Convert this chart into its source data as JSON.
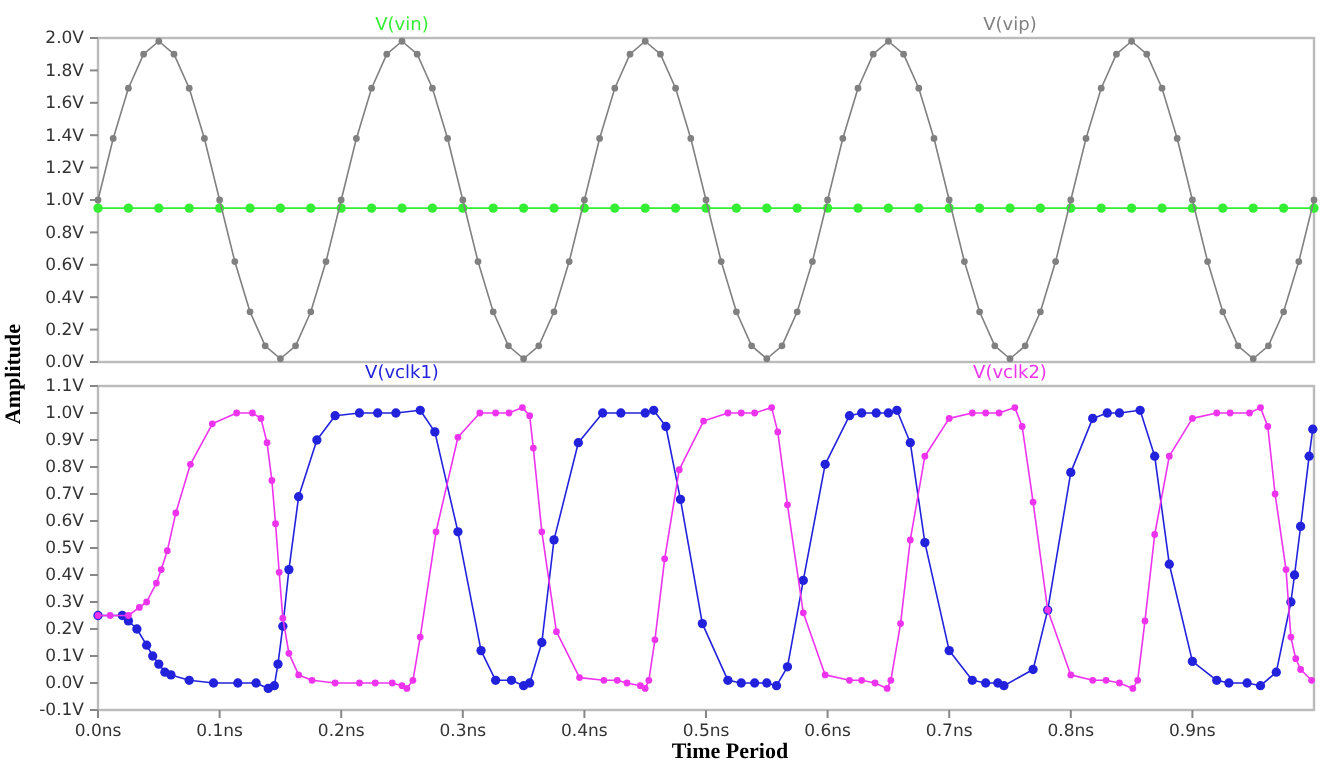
{
  "chart_data": [
    {
      "type": "line",
      "ylabel": "Amplitude",
      "xlim": [
        0,
        1.0
      ],
      "ylim": [
        0,
        2.0
      ],
      "yticks": [
        {
          "value": 0,
          "label": "0.0V"
        },
        {
          "value": 0.2,
          "label": "0.2V"
        },
        {
          "value": 0.4,
          "label": "0.4V"
        },
        {
          "value": 0.6,
          "label": "0.6V"
        },
        {
          "value": 0.8,
          "label": "0.8V"
        },
        {
          "value": 1.0,
          "label": "1.0V"
        },
        {
          "value": 1.2,
          "label": "1.2V"
        },
        {
          "value": 1.4,
          "label": "1.4V"
        },
        {
          "value": 1.6,
          "label": "1.6V"
        },
        {
          "value": 1.8,
          "label": "1.8V"
        },
        {
          "value": 2.0,
          "label": "2.0V"
        }
      ],
      "tick_labels": "y",
      "grid": false,
      "legend": "top",
      "marker": "circle",
      "line_style": "solid",
      "series": [
        {
          "name": "V(vin)",
          "color": "#33ee33",
          "x": [
            0,
            0.025,
            0.05,
            0.075,
            0.1,
            0.125,
            0.15,
            0.175,
            0.2,
            0.225,
            0.25,
            0.275,
            0.3,
            0.325,
            0.35,
            0.375,
            0.4,
            0.425,
            0.45,
            0.475,
            0.5,
            0.525,
            0.55,
            0.575,
            0.6,
            0.625,
            0.65,
            0.675,
            0.7,
            0.725,
            0.75,
            0.775,
            0.8,
            0.825,
            0.85,
            0.875,
            0.9,
            0.925,
            0.95,
            0.975,
            1.0
          ],
          "values": [
            0.95,
            0.95,
            0.95,
            0.95,
            0.95,
            0.95,
            0.95,
            0.95,
            0.95,
            0.95,
            0.95,
            0.95,
            0.95,
            0.95,
            0.95,
            0.95,
            0.95,
            0.95,
            0.95,
            0.95,
            0.95,
            0.95,
            0.95,
            0.95,
            0.95,
            0.95,
            0.95,
            0.95,
            0.95,
            0.95,
            0.95,
            0.95,
            0.95,
            0.95,
            0.95,
            0.95,
            0.95,
            0.95,
            0.95,
            0.95,
            0.95
          ]
        },
        {
          "name": "V(vip)",
          "color": "#808080",
          "x": [
            0,
            0.0125,
            0.025,
            0.0375,
            0.05,
            0.0625,
            0.075,
            0.0875,
            0.1,
            0.1125,
            0.125,
            0.1375,
            0.15,
            0.1625,
            0.175,
            0.1875,
            0.2,
            0.2125,
            0.225,
            0.2375,
            0.25,
            0.2625,
            0.275,
            0.2875,
            0.3,
            0.3125,
            0.325,
            0.3375,
            0.35,
            0.3625,
            0.375,
            0.3875,
            0.4,
            0.4125,
            0.425,
            0.4375,
            0.45,
            0.4625,
            0.475,
            0.4875,
            0.5,
            0.5125,
            0.525,
            0.5375,
            0.55,
            0.5625,
            0.575,
            0.5875,
            0.6,
            0.6125,
            0.625,
            0.6375,
            0.65,
            0.6625,
            0.675,
            0.6875,
            0.7,
            0.7125,
            0.725,
            0.7375,
            0.75,
            0.7625,
            0.775,
            0.7875,
            0.8,
            0.8125,
            0.825,
            0.8375,
            0.85,
            0.8625,
            0.875,
            0.8875,
            0.9,
            0.9125,
            0.925,
            0.9375,
            0.95,
            0.9625,
            0.975,
            0.9875,
            1.0
          ],
          "values": [
            1.0,
            1.38,
            1.69,
            1.9,
            1.98,
            1.9,
            1.69,
            1.38,
            1.0,
            0.62,
            0.31,
            0.1,
            0.02,
            0.1,
            0.31,
            0.62,
            1.0,
            1.38,
            1.69,
            1.9,
            1.98,
            1.9,
            1.69,
            1.38,
            1.0,
            0.62,
            0.31,
            0.1,
            0.02,
            0.1,
            0.31,
            0.62,
            1.0,
            1.38,
            1.69,
            1.9,
            1.98,
            1.9,
            1.69,
            1.38,
            1.0,
            0.62,
            0.31,
            0.1,
            0.02,
            0.1,
            0.31,
            0.62,
            1.0,
            1.38,
            1.69,
            1.9,
            1.98,
            1.9,
            1.69,
            1.38,
            1.0,
            0.62,
            0.31,
            0.1,
            0.02,
            0.1,
            0.31,
            0.62,
            1.0,
            1.38,
            1.69,
            1.9,
            1.98,
            1.9,
            1.69,
            1.38,
            1.0,
            0.62,
            0.31,
            0.1,
            0.02,
            0.1,
            0.31,
            0.62,
            1.0
          ]
        }
      ]
    },
    {
      "type": "line",
      "xlabel": "Time Period",
      "xlim": [
        0,
        1.0
      ],
      "xticks": [
        {
          "value": 0,
          "label": "0.0ns"
        },
        {
          "value": 0.1,
          "label": "0.1ns"
        },
        {
          "value": 0.2,
          "label": "0.2ns"
        },
        {
          "value": 0.3,
          "label": "0.3ns"
        },
        {
          "value": 0.4,
          "label": "0.4ns"
        },
        {
          "value": 0.5,
          "label": "0.5ns"
        },
        {
          "value": 0.6,
          "label": "0.6ns"
        },
        {
          "value": 0.7,
          "label": "0.7ns"
        },
        {
          "value": 0.8,
          "label": "0.8ns"
        },
        {
          "value": 0.9,
          "label": "0.9ns"
        }
      ],
      "ylim": [
        -0.1,
        1.1
      ],
      "yticks": [
        {
          "value": -0.1,
          "label": "-0.1V"
        },
        {
          "value": 0,
          "label": "0.0V"
        },
        {
          "value": 0.1,
          "label": "0.1V"
        },
        {
          "value": 0.2,
          "label": "0.2V"
        },
        {
          "value": 0.3,
          "label": "0.3V"
        },
        {
          "value": 0.4,
          "label": "0.4V"
        },
        {
          "value": 0.5,
          "label": "0.5V"
        },
        {
          "value": 0.6,
          "label": "0.6V"
        },
        {
          "value": 0.7,
          "label": "0.7V"
        },
        {
          "value": 0.8,
          "label": "0.8V"
        },
        {
          "value": 0.9,
          "label": "0.9V"
        },
        {
          "value": 1.0,
          "label": "1.0V"
        },
        {
          "value": 1.1,
          "label": "1.1V"
        }
      ],
      "grid": false,
      "legend": "top",
      "marker": "circle",
      "line_style": "solid",
      "series": [
        {
          "name": "V(vclk1)",
          "color": "#2222dd",
          "x": [
            0,
            0.02,
            0.025,
            0.032,
            0.04,
            0.045,
            0.05,
            0.055,
            0.06,
            0.075,
            0.095,
            0.115,
            0.13,
            0.14,
            0.145,
            0.148,
            0.152,
            0.157,
            0.165,
            0.18,
            0.195,
            0.215,
            0.23,
            0.245,
            0.265,
            0.277,
            0.296,
            0.315,
            0.327,
            0.34,
            0.35,
            0.355,
            0.365,
            0.375,
            0.395,
            0.415,
            0.43,
            0.45,
            0.457,
            0.467,
            0.479,
            0.497,
            0.518,
            0.529,
            0.54,
            0.55,
            0.558,
            0.567,
            0.58,
            0.598,
            0.618,
            0.628,
            0.64,
            0.65,
            0.657,
            0.668,
            0.68,
            0.7,
            0.719,
            0.73,
            0.74,
            0.745,
            0.769,
            0.781,
            0.8,
            0.818,
            0.83,
            0.84,
            0.857,
            0.869,
            0.881,
            0.9,
            0.92,
            0.93,
            0.945,
            0.956,
            0.969,
            0.981,
            0.984,
            0.989,
            0.996,
            0.999
          ],
          "values": [
            0.25,
            0.25,
            0.23,
            0.2,
            0.14,
            0.1,
            0.07,
            0.04,
            0.03,
            0.01,
            0.0,
            0.0,
            0.0,
            -0.02,
            -0.01,
            0.07,
            0.21,
            0.42,
            0.69,
            0.9,
            0.99,
            1.0,
            1.0,
            1.0,
            1.01,
            0.93,
            0.56,
            0.12,
            0.01,
            0.01,
            -0.01,
            0.0,
            0.15,
            0.53,
            0.89,
            1.0,
            1.0,
            1.0,
            1.01,
            0.95,
            0.68,
            0.22,
            0.01,
            0.0,
            0.0,
            0.0,
            -0.01,
            0.06,
            0.38,
            0.81,
            0.99,
            1.0,
            1.0,
            1.0,
            1.01,
            0.89,
            0.52,
            0.12,
            0.01,
            0.0,
            0.0,
            -0.01,
            0.05,
            0.27,
            0.78,
            0.98,
            1.0,
            1.0,
            1.01,
            0.84,
            0.44,
            0.08,
            0.01,
            0.0,
            0.0,
            -0.01,
            0.04,
            0.3,
            0.4,
            0.58,
            0.84,
            0.94
          ]
        },
        {
          "name": "V(vclk2)",
          "color": "#ee33ee",
          "x": [
            0,
            0.01,
            0.025,
            0.034,
            0.04,
            0.048,
            0.052,
            0.057,
            0.064,
            0.076,
            0.094,
            0.114,
            0.127,
            0.134,
            0.139,
            0.143,
            0.146,
            0.149,
            0.152,
            0.157,
            0.165,
            0.176,
            0.195,
            0.215,
            0.228,
            0.242,
            0.25,
            0.254,
            0.259,
            0.265,
            0.278,
            0.296,
            0.314,
            0.327,
            0.338,
            0.349,
            0.355,
            0.358,
            0.365,
            0.377,
            0.396,
            0.416,
            0.427,
            0.435,
            0.446,
            0.45,
            0.453,
            0.458,
            0.466,
            0.478,
            0.498,
            0.518,
            0.529,
            0.54,
            0.554,
            0.559,
            0.567,
            0.58,
            0.598,
            0.618,
            0.628,
            0.639,
            0.649,
            0.652,
            0.66,
            0.668,
            0.68,
            0.7,
            0.719,
            0.73,
            0.741,
            0.754,
            0.76,
            0.769,
            0.781,
            0.8,
            0.818,
            0.829,
            0.84,
            0.851,
            0.855,
            0.861,
            0.869,
            0.881,
            0.9,
            0.92,
            0.931,
            0.947,
            0.956,
            0.962,
            0.968,
            0.977,
            0.981,
            0.985,
            0.989,
            0.998
          ],
          "values": [
            0.25,
            0.25,
            0.25,
            0.28,
            0.3,
            0.37,
            0.42,
            0.49,
            0.63,
            0.81,
            0.96,
            1.0,
            1.0,
            0.98,
            0.89,
            0.75,
            0.59,
            0.41,
            0.24,
            0.11,
            0.03,
            0.01,
            0.0,
            0.0,
            0.0,
            0.0,
            -0.01,
            -0.02,
            0.01,
            0.17,
            0.56,
            0.91,
            1.0,
            1.0,
            1.0,
            1.02,
            0.99,
            0.87,
            0.56,
            0.19,
            0.02,
            0.01,
            0.01,
            0.0,
            -0.01,
            -0.02,
            0.01,
            0.16,
            0.46,
            0.79,
            0.97,
            1.0,
            1.0,
            1.0,
            1.02,
            0.93,
            0.66,
            0.26,
            0.03,
            0.01,
            0.01,
            0.0,
            -0.02,
            0.01,
            0.22,
            0.53,
            0.84,
            0.98,
            1.0,
            1.0,
            1.0,
            1.02,
            0.95,
            0.67,
            0.27,
            0.03,
            0.01,
            0.01,
            0.0,
            -0.02,
            0.01,
            0.23,
            0.55,
            0.84,
            0.98,
            1.0,
            1.0,
            1.0,
            1.02,
            0.95,
            0.7,
            0.42,
            0.17,
            0.09,
            0.05,
            0.01
          ]
        }
      ]
    }
  ]
}
